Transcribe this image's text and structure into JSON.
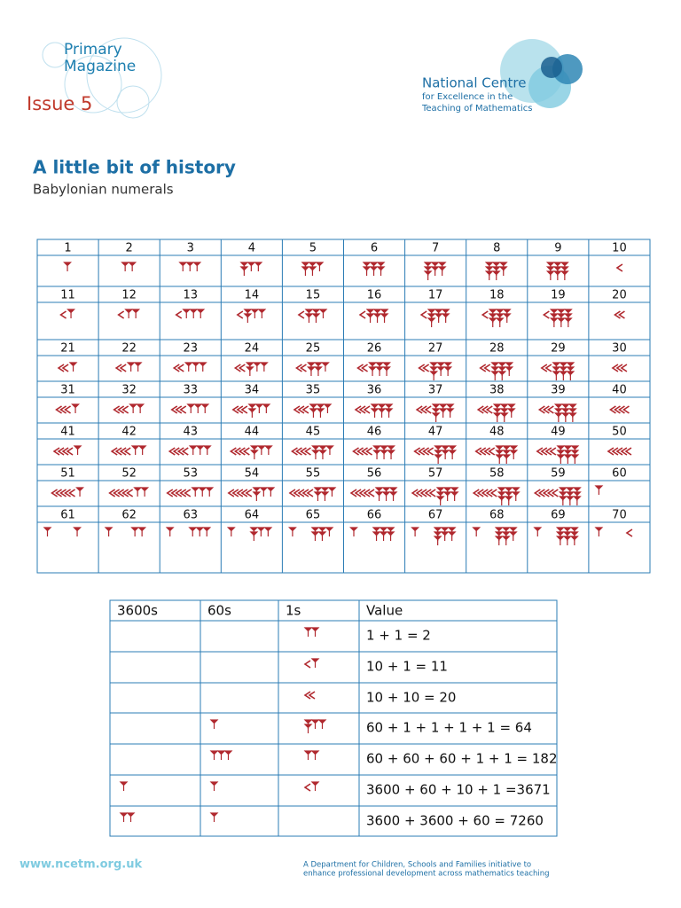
{
  "header": {
    "magazine": [
      "Primary",
      "Magazine"
    ],
    "issue": "Issue 5",
    "organisation": [
      "National Centre",
      "for Excellence in the",
      "Teaching of Mathematics"
    ]
  },
  "title": "A little bit of history",
  "subtitle": "Babylonian numerals",
  "numerals": [
    1,
    2,
    3,
    4,
    5,
    6,
    7,
    8,
    9,
    10,
    11,
    12,
    13,
    14,
    15,
    16,
    17,
    18,
    19,
    20,
    21,
    22,
    23,
    24,
    25,
    26,
    27,
    28,
    29,
    30,
    31,
    32,
    33,
    34,
    35,
    36,
    37,
    38,
    39,
    40,
    41,
    42,
    43,
    44,
    45,
    46,
    47,
    48,
    49,
    50,
    51,
    52,
    53,
    54,
    55,
    56,
    57,
    58,
    59,
    60,
    61,
    62,
    63,
    64,
    65,
    66,
    67,
    68,
    69,
    70
  ],
  "table": {
    "headers": [
      "3600s",
      "60s",
      "1s",
      "Value"
    ],
    "values": [
      "1 + 1 = 2",
      "10 + 1 = 11",
      "10 + 10 = 20",
      "60 + 1 + 1 + 1 + 1 = 64",
      "60 + 60 + 60 + 1 + 1 = 182",
      "3600 + 60 + 10 + 1 =3671",
      "3600 + 3600 + 60 = 7260"
    ]
  },
  "footer": {
    "url": "www.ncetm.org.uk",
    "note": [
      "A Department for Children, Schools and Families initiative to",
      "enhance professional development across mathematics teaching"
    ]
  }
}
